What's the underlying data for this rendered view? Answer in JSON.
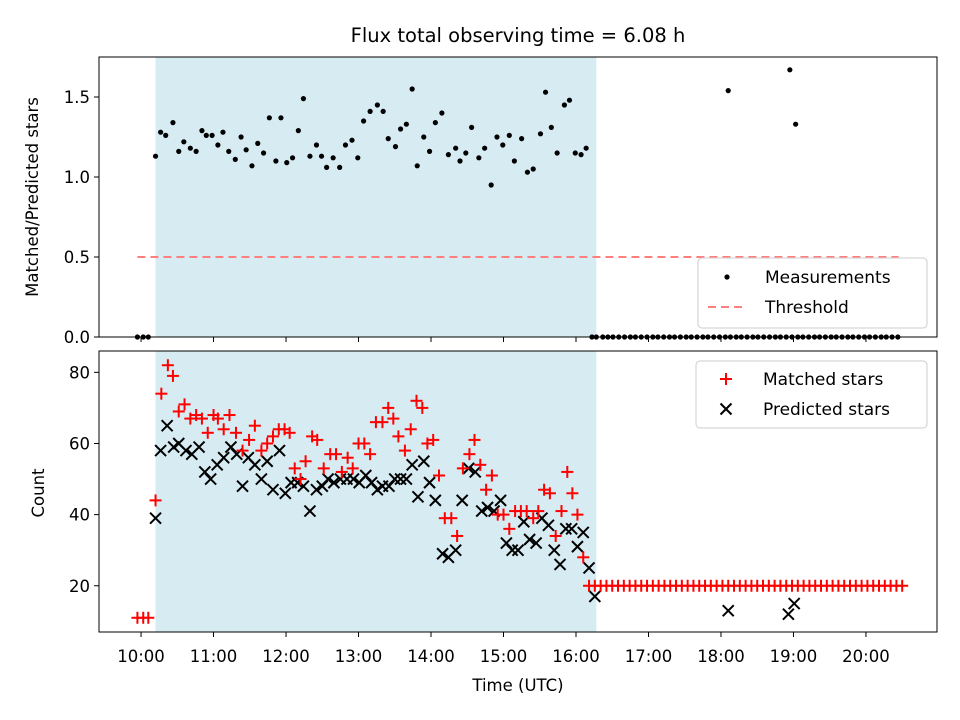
{
  "title": "Flux total observing time = 6.08 h",
  "xlabel": "Time (UTC)",
  "x_ticks": [
    {
      "h": 10,
      "label": "10:00"
    },
    {
      "h": 11,
      "label": "11:00"
    },
    {
      "h": 12,
      "label": "12:00"
    },
    {
      "h": 13,
      "label": "13:00"
    },
    {
      "h": 14,
      "label": "14:00"
    },
    {
      "h": 15,
      "label": "15:00"
    },
    {
      "h": 16,
      "label": "16:00"
    },
    {
      "h": 17,
      "label": "17:00"
    },
    {
      "h": 18,
      "label": "18:00"
    },
    {
      "h": 19,
      "label": "19:00"
    },
    {
      "h": 20,
      "label": "20:00"
    }
  ],
  "colors": {
    "shade": "#add8e6",
    "threshold": "#ff7f7f",
    "matched": "#ff0000",
    "predicted": "#000000",
    "measure": "#000000"
  },
  "chart_data": [
    {
      "type": "scatter",
      "name": "ratio",
      "ylabel": "Matched/Predicted stars",
      "xlim": [
        9.42,
        20.98
      ],
      "ylim": [
        0,
        1.75
      ],
      "y_ticks": [
        {
          "v": 0,
          "label": "0.0"
        },
        {
          "v": 0.5,
          "label": "0.5"
        },
        {
          "v": 1.0,
          "label": "1.0"
        },
        {
          "v": 1.5,
          "label": "1.5"
        }
      ],
      "shaded_span": [
        10.2,
        16.28
      ],
      "threshold": {
        "y": 0.5,
        "x": [
          9.95,
          20.45
        ]
      },
      "legend": {
        "position": "lower-right",
        "measurements": "Measurements",
        "threshold": "Threshold"
      },
      "series": [
        {
          "name": "Measurements",
          "x": [
            9.95,
            10.03,
            10.1,
            10.2,
            10.27,
            10.34,
            10.44,
            10.52,
            10.59,
            10.68,
            10.76,
            10.84,
            10.9,
            10.98,
            11.06,
            11.13,
            11.21,
            11.3,
            11.38,
            11.45,
            11.53,
            11.61,
            11.69,
            11.77,
            11.86,
            11.93,
            12.01,
            12.09,
            12.17,
            12.24,
            12.33,
            12.42,
            12.49,
            12.56,
            12.65,
            12.74,
            12.82,
            12.91,
            12.99,
            13.07,
            13.16,
            13.26,
            13.34,
            13.41,
            13.51,
            13.58,
            13.66,
            13.74,
            13.81,
            13.9,
            13.98,
            14.06,
            14.15,
            14.24,
            14.34,
            14.4,
            14.48,
            14.56,
            14.66,
            14.74,
            14.83,
            14.91,
            14.99,
            15.08,
            15.15,
            15.25,
            15.33,
            15.41,
            15.51,
            15.58,
            15.66,
            15.74,
            15.84,
            15.91,
            15.99,
            16.07,
            16.14,
            16.22,
            16.28,
            16.37,
            16.44,
            16.51,
            16.59,
            16.67,
            16.75,
            16.82,
            16.9,
            16.98,
            17.06,
            17.13,
            17.21,
            17.29,
            17.36,
            17.44,
            17.52,
            17.59,
            17.67,
            17.75,
            17.82,
            17.9,
            17.98,
            18.06,
            18.13,
            18.21,
            18.28,
            18.36,
            18.44,
            18.51,
            18.59,
            18.67,
            18.75,
            18.82,
            18.9,
            18.98,
            19.06,
            19.13,
            19.21,
            19.29,
            19.36,
            19.44,
            19.52,
            19.59,
            19.67,
            19.75,
            19.82,
            19.9,
            19.98,
            20.05,
            20.13,
            20.21,
            20.28,
            20.36,
            20.44,
            18.1,
            18.95,
            19.03
          ],
          "y": [
            0,
            0,
            0,
            1.13,
            1.28,
            1.26,
            1.34,
            1.16,
            1.22,
            1.18,
            1.16,
            1.29,
            1.26,
            1.26,
            1.2,
            1.28,
            1.16,
            1.11,
            1.25,
            1.17,
            1.07,
            1.21,
            1.15,
            1.37,
            1.1,
            1.37,
            1.09,
            1.12,
            1.29,
            1.49,
            1.13,
            1.2,
            1.13,
            1.06,
            1.12,
            1.06,
            1.2,
            1.23,
            1.12,
            1.35,
            1.41,
            1.45,
            1.41,
            1.24,
            1.19,
            1.3,
            1.33,
            1.55,
            1.07,
            1.25,
            1.16,
            1.34,
            1.4,
            1.14,
            1.18,
            1.1,
            1.15,
            1.31,
            1.12,
            1.18,
            0.95,
            1.25,
            1.2,
            1.26,
            1.1,
            1.24,
            1.03,
            1.05,
            1.27,
            1.53,
            1.31,
            1.15,
            1.45,
            1.48,
            1.15,
            1.14,
            1.18,
            0,
            0,
            0,
            0,
            0,
            0,
            0,
            0,
            0,
            0,
            0,
            0,
            0,
            0,
            0,
            0,
            0,
            0,
            0,
            0,
            0,
            0,
            0,
            0,
            0,
            0,
            0,
            0,
            0,
            0,
            0,
            0,
            0,
            0,
            0,
            0,
            0,
            0,
            0,
            0,
            0,
            0,
            0,
            0,
            0,
            0,
            0,
            0,
            0,
            0,
            0,
            0,
            0,
            0,
            0,
            0,
            1.54,
            1.67,
            1.33
          ]
        }
      ]
    },
    {
      "type": "scatter",
      "name": "counts",
      "ylabel": "Count",
      "xlim": [
        9.42,
        20.98
      ],
      "ylim": [
        7,
        86
      ],
      "y_ticks": [
        {
          "v": 20,
          "label": "20"
        },
        {
          "v": 40,
          "label": "40"
        },
        {
          "v": 60,
          "label": "60"
        },
        {
          "v": 80,
          "label": "80"
        }
      ],
      "shaded_span": [
        10.2,
        16.28
      ],
      "legend": {
        "position": "upper-right",
        "matched": "Matched stars",
        "predicted": "Predicted stars"
      },
      "series": [
        {
          "name": "Matched stars",
          "marker": "+",
          "x": [
            9.95,
            10.03,
            10.1,
            10.2,
            10.28,
            10.37,
            10.44,
            10.52,
            10.6,
            10.68,
            10.76,
            10.84,
            10.92,
            11.0,
            11.06,
            11.14,
            11.22,
            11.31,
            11.4,
            11.49,
            11.57,
            11.66,
            11.74,
            11.82,
            11.9,
            11.98,
            12.05,
            12.12,
            12.2,
            12.27,
            12.36,
            12.43,
            12.52,
            12.61,
            12.69,
            12.77,
            12.85,
            12.92,
            13.0,
            13.08,
            13.16,
            13.24,
            13.33,
            13.41,
            13.48,
            13.55,
            13.64,
            13.72,
            13.8,
            13.88,
            13.95,
            14.03,
            14.11,
            14.19,
            14.28,
            14.36,
            14.44,
            14.53,
            14.6,
            14.68,
            14.76,
            14.84,
            14.92,
            15.0,
            15.08,
            15.16,
            15.24,
            15.32,
            15.41,
            15.48,
            15.56,
            15.64,
            15.72,
            15.8,
            15.88,
            15.95,
            16.02,
            16.1,
            16.18,
            16.26,
            16.34,
            16.42,
            16.5,
            16.58,
            16.66,
            16.74,
            16.82,
            16.9,
            16.98,
            17.06,
            17.14,
            17.22,
            17.3,
            17.38,
            17.46,
            17.54,
            17.62,
            17.7,
            17.78,
            17.86,
            17.94,
            18.02,
            18.1,
            18.18,
            18.26,
            18.34,
            18.42,
            18.5,
            18.58,
            18.66,
            18.74,
            18.82,
            18.9,
            18.98,
            19.06,
            19.14,
            19.22,
            19.3,
            19.38,
            19.46,
            19.54,
            19.62,
            19.7,
            19.78,
            19.86,
            19.94,
            20.02,
            20.1,
            20.18,
            20.26,
            20.34,
            20.42,
            20.5
          ],
          "y": [
            11,
            11,
            11,
            44,
            74,
            82,
            79,
            69,
            71,
            67,
            68,
            67,
            63,
            68,
            67,
            64,
            68,
            63,
            58,
            61,
            65,
            58,
            60,
            62,
            64,
            64,
            63,
            53,
            50,
            55,
            62,
            61,
            53,
            57,
            57,
            52,
            56,
            53,
            60,
            60,
            57,
            66,
            66,
            70,
            67,
            62,
            58,
            64,
            72,
            70,
            60,
            61,
            51,
            39,
            39,
            34,
            53,
            57,
            61,
            54,
            47,
            51,
            40,
            40,
            36,
            41,
            41,
            41,
            39,
            41,
            47,
            46,
            34,
            41,
            52,
            46,
            40,
            28,
            20,
            20,
            20,
            20,
            20,
            20,
            20,
            20,
            20,
            20,
            20,
            20,
            20,
            20,
            20,
            20,
            20,
            20,
            20,
            20,
            20,
            20,
            20,
            20,
            20,
            20,
            20,
            20,
            20,
            20,
            20,
            20,
            20,
            20,
            20,
            20,
            20,
            20,
            20,
            20,
            20,
            20,
            20,
            20,
            20,
            20,
            20,
            20,
            20,
            20,
            20,
            20,
            20,
            20,
            20
          ]
        },
        {
          "name": "Predicted stars",
          "marker": "x",
          "x": [
            10.2,
            10.27,
            10.36,
            10.45,
            10.52,
            10.62,
            10.7,
            10.8,
            10.88,
            10.96,
            11.05,
            11.14,
            11.24,
            11.32,
            11.4,
            11.48,
            11.57,
            11.66,
            11.74,
            11.82,
            11.91,
            11.99,
            12.07,
            12.16,
            12.24,
            12.33,
            12.42,
            12.5,
            12.58,
            12.66,
            12.75,
            12.84,
            12.93,
            13.01,
            13.1,
            13.18,
            13.26,
            13.33,
            13.42,
            13.5,
            13.58,
            13.66,
            13.74,
            13.82,
            13.9,
            13.98,
            14.06,
            14.16,
            14.24,
            14.34,
            14.43,
            14.52,
            14.61,
            14.7,
            14.78,
            14.87,
            14.96,
            15.04,
            15.12,
            15.2,
            15.28,
            15.36,
            15.45,
            15.53,
            15.62,
            15.7,
            15.78,
            15.86,
            15.94,
            16.02,
            16.1,
            16.18,
            16.26,
            18.1,
            18.93,
            19.01
          ],
          "y": [
            39,
            58,
            65,
            59,
            60,
            58,
            57,
            59,
            52,
            50,
            54,
            56,
            59,
            57,
            48,
            56,
            54,
            50,
            55,
            47,
            58,
            46,
            49,
            49,
            48,
            41,
            47,
            48,
            50,
            49,
            50,
            50,
            50,
            49,
            51,
            49,
            47,
            48,
            48,
            50,
            50,
            50,
            54,
            45,
            55,
            49,
            44,
            29,
            28,
            30,
            44,
            53,
            52,
            41,
            42,
            41,
            44,
            32,
            30,
            30,
            38,
            33,
            32,
            39,
            37,
            30,
            26,
            36,
            36,
            31,
            35,
            25,
            17,
            13,
            12,
            15
          ]
        }
      ]
    }
  ]
}
